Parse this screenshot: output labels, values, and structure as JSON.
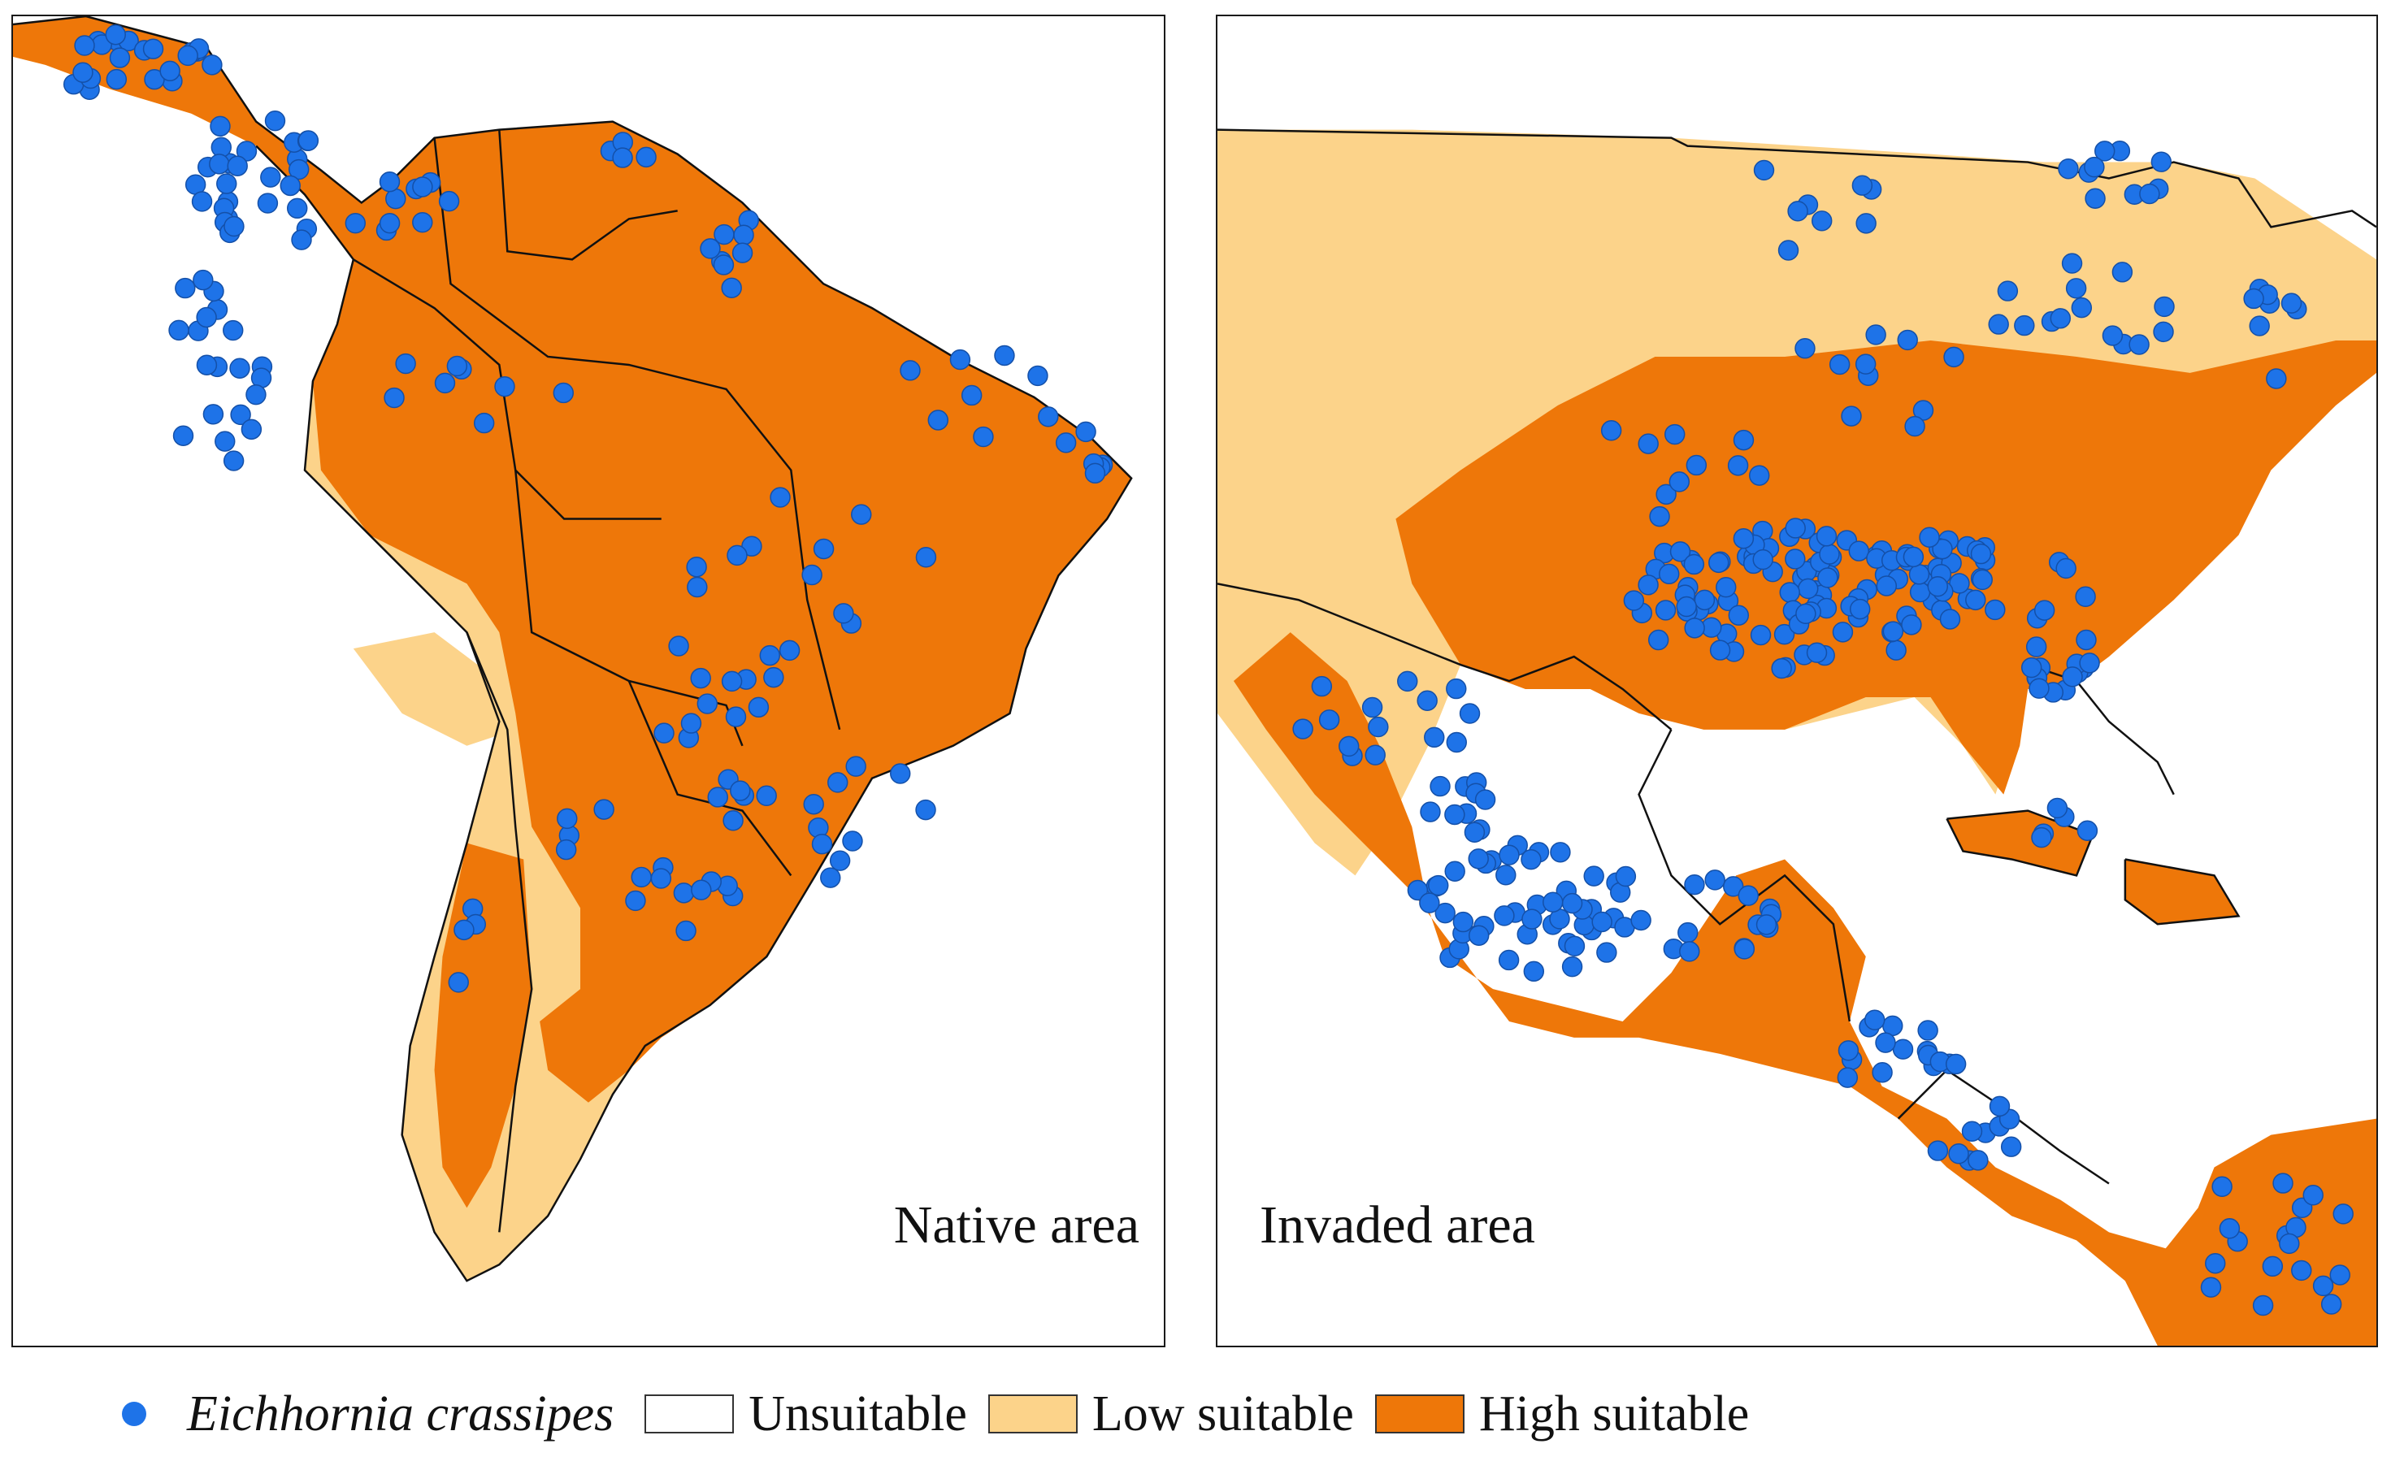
{
  "panels": [
    {
      "id": "native",
      "label": "Native area"
    },
    {
      "id": "invaded",
      "label": "Invaded area"
    }
  ],
  "legend": {
    "species": {
      "label": "Eichhornia crassipes",
      "color": "#1e73e8"
    },
    "classes": [
      {
        "label": "Unsuitable",
        "color": "#ffffff"
      },
      {
        "label": "Low suitable",
        "color": "#fcd38a"
      },
      {
        "label": "High suitable",
        "color": "#ee7709"
      }
    ]
  },
  "colors": {
    "high": "#ee7709",
    "low": "#fcd38a",
    "point": "#1e73e8",
    "border": "#111111",
    "frame": "#1a1a1a"
  },
  "map_features": {
    "native_region": "South America and southern Central America",
    "invaded_region": "United States, Mexico, Central America and the Caribbean",
    "symbol": "circle-icon"
  }
}
